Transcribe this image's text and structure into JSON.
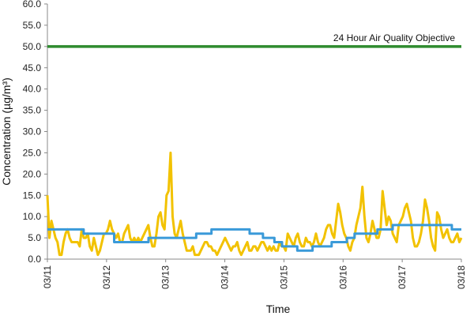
{
  "chart_data": {
    "type": "line",
    "title": "",
    "xlabel": "Time",
    "ylabel": "Concentration (µg/m³)",
    "ylim": [
      0,
      60
    ],
    "y_ticks": [
      "0.0",
      "5.0",
      "10.0",
      "15.0",
      "20.0",
      "25.0",
      "30.0",
      "35.0",
      "40.0",
      "45.0",
      "50.0",
      "55.0",
      "60.0"
    ],
    "x_ticks": [
      "03/11",
      "03/12",
      "03/13",
      "03/14",
      "03/15",
      "03/16",
      "03/17",
      "03/18"
    ],
    "grid": false,
    "annotations": [
      {
        "text": "24 Hour Air Quality Objective",
        "y": 50
      }
    ],
    "series": [
      {
        "color": "#2E8B2E",
        "style": "horizontal-line",
        "values": [
          50,
          50
        ]
      },
      {
        "color": "#F2C200",
        "style": "line",
        "values": [
          15,
          5,
          9,
          7,
          5,
          4,
          1,
          1,
          4,
          6,
          7,
          5,
          4,
          4,
          4,
          4,
          3,
          7,
          5,
          5,
          6,
          3,
          2,
          5,
          3,
          1,
          2,
          4,
          6,
          6,
          7,
          9,
          7,
          6,
          5,
          6,
          4,
          4,
          6,
          7,
          8,
          5,
          4,
          5,
          4,
          5,
          4,
          5,
          6,
          7,
          8,
          5,
          3,
          3,
          6,
          10,
          11,
          8,
          7,
          15,
          16,
          25,
          10,
          6,
          5,
          7,
          9,
          6,
          4,
          2,
          2,
          2,
          3,
          1,
          1,
          1,
          2,
          3,
          4,
          4,
          3,
          3,
          2,
          2,
          1,
          2,
          3,
          4,
          5,
          4,
          3,
          2,
          3,
          3,
          4,
          2,
          1,
          2,
          3,
          4,
          2,
          2,
          3,
          3,
          2,
          3,
          4,
          4,
          3,
          2,
          3,
          2,
          3,
          2,
          2,
          4,
          3,
          3,
          2,
          6,
          5,
          4,
          3,
          5,
          6,
          4,
          3,
          3,
          5,
          4,
          4,
          3,
          4,
          6,
          4,
          3,
          4,
          5,
          7,
          8,
          8,
          6,
          5,
          9,
          13,
          11,
          8,
          6,
          5,
          3,
          2,
          4,
          5,
          8,
          10,
          12,
          17,
          10,
          5,
          4,
          6,
          9,
          7,
          5,
          5,
          7,
          16,
          12,
          8,
          10,
          9,
          6,
          5,
          4,
          8,
          9,
          10,
          12,
          13,
          11,
          9,
          5,
          3,
          3,
          4,
          6,
          9,
          14,
          12,
          9,
          5,
          3,
          2,
          11,
          10,
          7,
          5,
          6,
          7,
          5,
          4,
          4,
          5,
          6,
          4,
          5
        ]
      },
      {
        "color": "#3A9AD9",
        "style": "step",
        "values": [
          7,
          7,
          7,
          7,
          7,
          7,
          7,
          7,
          7,
          7,
          7,
          7,
          7,
          7,
          7,
          7,
          7,
          7,
          7,
          6,
          6,
          6,
          6,
          6,
          6,
          6,
          6,
          6,
          6,
          6,
          6,
          6,
          6,
          6,
          6,
          4,
          4,
          4,
          4,
          4,
          4,
          4,
          4,
          4,
          4,
          4,
          4,
          4,
          4,
          4,
          4,
          4,
          4,
          5,
          5,
          5,
          5,
          5,
          5,
          5,
          5,
          5,
          5,
          5,
          5,
          5,
          5,
          5,
          5,
          5,
          5,
          5,
          5,
          5,
          5,
          5,
          5,
          5,
          6,
          6,
          6,
          6,
          6,
          6,
          6,
          6,
          7,
          7,
          7,
          7,
          7,
          7,
          7,
          7,
          7,
          7,
          7,
          7,
          7,
          7,
          7,
          7,
          7,
          7,
          7,
          7,
          6,
          6,
          6,
          6,
          6,
          6,
          6,
          5,
          5,
          5,
          5,
          5,
          5,
          4,
          4,
          4,
          4,
          3,
          3,
          3,
          3,
          3,
          3,
          3,
          3,
          2,
          2,
          2,
          2,
          2,
          2,
          2,
          2,
          3,
          3,
          3,
          3,
          3,
          3,
          3,
          3,
          3,
          3,
          4,
          4,
          4,
          4,
          4,
          4,
          4,
          4,
          5,
          5,
          5,
          5,
          6,
          6,
          6,
          6,
          6,
          6,
          6,
          6,
          6,
          6,
          6,
          6,
          7,
          7,
          7,
          7,
          7,
          7,
          7,
          7,
          8,
          8,
          8,
          8,
          8,
          8,
          8,
          8,
          8,
          8,
          8,
          8,
          8,
          8,
          8,
          8,
          8,
          8,
          8,
          8,
          8,
          8,
          8,
          8,
          8,
          8,
          8,
          8,
          8,
          8,
          8,
          7,
          7,
          7,
          7,
          7,
          7
        ]
      }
    ]
  }
}
